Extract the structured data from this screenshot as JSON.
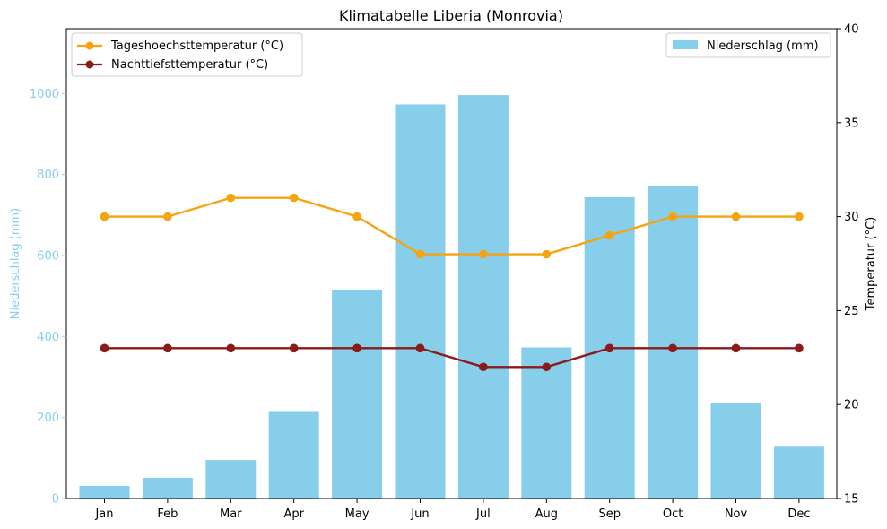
{
  "chart_data": {
    "type": "bar",
    "title": "Klimatabelle Liberia (Monrovia)",
    "categories": [
      "Jan",
      "Feb",
      "Mar",
      "Apr",
      "May",
      "Jun",
      "Jul",
      "Aug",
      "Sep",
      "Oct",
      "Nov",
      "Dec"
    ],
    "y_left": {
      "label": "Niederschlag (mm)",
      "lim": [
        0,
        1160
      ],
      "ticks": [
        0,
        200,
        400,
        600,
        800,
        1000
      ],
      "color": "#87ceeb"
    },
    "y_right": {
      "label": "Temperatur (°C)",
      "lim": [
        15,
        40
      ],
      "ticks": [
        15,
        20,
        25,
        30,
        35,
        40
      ]
    },
    "series": [
      {
        "name": "Niederschlag (mm)",
        "type": "bar",
        "axis": "left",
        "color": "#87ceeb",
        "values": [
          31,
          51,
          95,
          216,
          516,
          973,
          996,
          373,
          744,
          771,
          236,
          130
        ]
      },
      {
        "name": "Tageshoechsttemperatur (°C)",
        "type": "line",
        "axis": "right",
        "color": "#f5a30f",
        "values": [
          30,
          30,
          31,
          31,
          30,
          28,
          28,
          28,
          29,
          30,
          30,
          30
        ]
      },
      {
        "name": "Nachttiefsttemperatur (°C)",
        "type": "line",
        "axis": "right",
        "color": "#8b1a1a",
        "values": [
          23,
          23,
          23,
          23,
          23,
          23,
          22,
          22,
          23,
          23,
          23,
          23
        ]
      }
    ],
    "legends": {
      "lines": "top-left",
      "bars": "top-right"
    },
    "grid": false
  }
}
